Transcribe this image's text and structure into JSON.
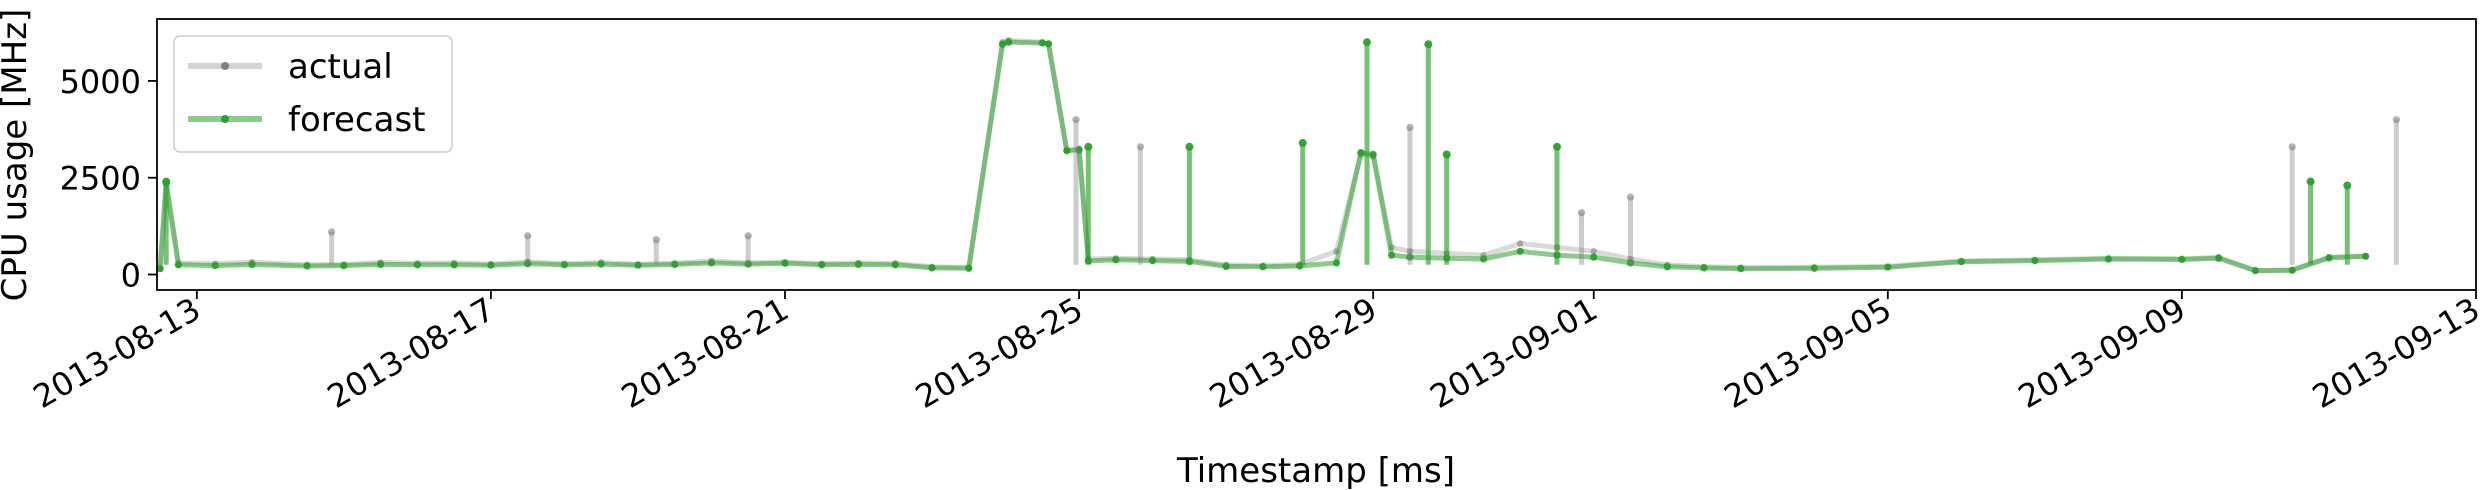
{
  "chart_data": {
    "type": "line",
    "title": "",
    "xlabel": "Timestamp [ms]",
    "ylabel": "CPU usage [MHz]",
    "xlim": [
      "2013-08-12T11:00",
      "2013-09-13T00:00"
    ],
    "ylim": [
      -400,
      6600
    ],
    "x_ticks": [
      "2013-08-13",
      "2013-08-17",
      "2013-08-21",
      "2013-08-25",
      "2013-08-29",
      "2013-09-01",
      "2013-09-05",
      "2013-09-09",
      "2013-09-13"
    ],
    "y_ticks": [
      0,
      2500,
      5000
    ],
    "legend_position": "top-left",
    "grid": false,
    "series": [
      {
        "name": "actual",
        "color": "#808080",
        "x": [
          "2013-08-12T12:00",
          "2013-08-12T14:00",
          "2013-08-12T18:00",
          "2013-08-13T06:00",
          "2013-08-13T18:00",
          "2013-08-14T12:00",
          "2013-08-15T00:00",
          "2013-08-15T12:00",
          "2013-08-16T00:00",
          "2013-08-16T12:00",
          "2013-08-17T00:00",
          "2013-08-17T12:00",
          "2013-08-18T00:00",
          "2013-08-18T12:00",
          "2013-08-19T00:00",
          "2013-08-19T12:00",
          "2013-08-20T00:00",
          "2013-08-20T12:00",
          "2013-08-21T00:00",
          "2013-08-21T12:00",
          "2013-08-22T00:00",
          "2013-08-22T12:00",
          "2013-08-23T00:00",
          "2013-08-23T12:00",
          "2013-08-23T23:00",
          "2013-08-24T01:00",
          "2013-08-24T12:00",
          "2013-08-24T14:00",
          "2013-08-24T20:00",
          "2013-08-25T00:00",
          "2013-08-25T03:00",
          "2013-08-25T12:00",
          "2013-08-26T00:00",
          "2013-08-26T12:00",
          "2013-08-27T00:00",
          "2013-08-27T12:00",
          "2013-08-28T00:00",
          "2013-08-28T12:00",
          "2013-08-28T20:00",
          "2013-08-29T00:00",
          "2013-08-29T06:00",
          "2013-08-29T12:00",
          "2013-08-30T00:00",
          "2013-08-30T12:00",
          "2013-08-31T00:00",
          "2013-08-31T12:00",
          "2013-09-01T00:00",
          "2013-09-01T12:00",
          "2013-09-02T00:00",
          "2013-09-02T12:00",
          "2013-09-03T00:00",
          "2013-09-04T00:00",
          "2013-09-05T00:00",
          "2013-09-06T00:00",
          "2013-09-07T00:00",
          "2013-09-08T00:00",
          "2013-09-09T00:00",
          "2013-09-09T12:00",
          "2013-09-10T00:00",
          "2013-09-10T12:00",
          "2013-09-11T00:00",
          "2013-09-11T12:00"
        ],
        "values": [
          150,
          2400,
          300,
          280,
          320,
          250,
          260,
          310,
          290,
          300,
          270,
          330,
          280,
          310,
          260,
          290,
          350,
          300,
          320,
          280,
          300,
          290,
          200,
          180,
          6000,
          6050,
          6000,
          5950,
          3200,
          3250,
          400,
          420,
          400,
          380,
          250,
          230,
          260,
          600,
          3100,
          3050,
          700,
          600,
          550,
          500,
          800,
          700,
          600,
          400,
          250,
          200,
          180,
          190,
          210,
          350,
          380,
          420,
          400,
          450,
          100,
          120,
          450,
          480
        ]
      },
      {
        "name": "forecast",
        "color": "#2ca02c",
        "x": [
          "2013-08-12T12:00",
          "2013-08-12T14:00",
          "2013-08-12T18:00",
          "2013-08-13T06:00",
          "2013-08-13T18:00",
          "2013-08-14T12:00",
          "2013-08-15T00:00",
          "2013-08-15T12:00",
          "2013-08-16T00:00",
          "2013-08-16T12:00",
          "2013-08-17T00:00",
          "2013-08-17T12:00",
          "2013-08-18T00:00",
          "2013-08-18T12:00",
          "2013-08-19T00:00",
          "2013-08-19T12:00",
          "2013-08-20T00:00",
          "2013-08-20T12:00",
          "2013-08-21T00:00",
          "2013-08-21T12:00",
          "2013-08-22T00:00",
          "2013-08-22T12:00",
          "2013-08-23T00:00",
          "2013-08-23T12:00",
          "2013-08-23T23:00",
          "2013-08-24T01:00",
          "2013-08-24T12:00",
          "2013-08-24T14:00",
          "2013-08-24T20:00",
          "2013-08-25T00:00",
          "2013-08-25T03:00",
          "2013-08-25T12:00",
          "2013-08-26T00:00",
          "2013-08-26T12:00",
          "2013-08-27T00:00",
          "2013-08-27T12:00",
          "2013-08-28T00:00",
          "2013-08-28T12:00",
          "2013-08-28T20:00",
          "2013-08-29T00:00",
          "2013-08-29T06:00",
          "2013-08-29T12:00",
          "2013-08-30T00:00",
          "2013-08-30T12:00",
          "2013-08-31T00:00",
          "2013-08-31T12:00",
          "2013-09-01T00:00",
          "2013-09-01T12:00",
          "2013-09-02T00:00",
          "2013-09-02T12:00",
          "2013-09-03T00:00",
          "2013-09-04T00:00",
          "2013-09-05T00:00",
          "2013-09-06T00:00",
          "2013-09-07T00:00",
          "2013-09-08T00:00",
          "2013-09-09T00:00",
          "2013-09-09T12:00",
          "2013-09-10T00:00",
          "2013-09-10T12:00",
          "2013-09-11T00:00",
          "2013-09-11T12:00"
        ],
        "values": [
          150,
          2350,
          250,
          230,
          260,
          220,
          230,
          260,
          250,
          250,
          240,
          280,
          250,
          270,
          240,
          260,
          300,
          270,
          290,
          250,
          260,
          250,
          170,
          160,
          5950,
          6000,
          5980,
          5960,
          3200,
          3220,
          350,
          380,
          360,
          340,
          210,
          200,
          220,
          300,
          3150,
          3100,
          500,
          450,
          420,
          400,
          600,
          500,
          450,
          300,
          200,
          170,
          150,
          160,
          190,
          330,
          360,
          400,
          390,
          420,
          100,
          110,
          430,
          470
        ]
      }
    ],
    "spikes": [
      {
        "x": "2013-08-12T14:00",
        "value": 2400,
        "series": "forecast"
      },
      {
        "x": "2013-08-14T20:00",
        "value": 1100,
        "series": "actual"
      },
      {
        "x": "2013-08-17T12:00",
        "value": 1000,
        "series": "actual"
      },
      {
        "x": "2013-08-19T06:00",
        "value": 900,
        "series": "actual"
      },
      {
        "x": "2013-08-20T12:00",
        "value": 1000,
        "series": "actual"
      },
      {
        "x": "2013-08-24T23:00",
        "value": 4000,
        "series": "actual"
      },
      {
        "x": "2013-08-25T03:00",
        "value": 3300,
        "series": "forecast"
      },
      {
        "x": "2013-08-25T20:00",
        "value": 3300,
        "series": "actual"
      },
      {
        "x": "2013-08-26T12:00",
        "value": 3300,
        "series": "forecast"
      },
      {
        "x": "2013-08-28T01:00",
        "value": 3400,
        "series": "forecast"
      },
      {
        "x": "2013-08-28T22:00",
        "value": 6000,
        "series": "forecast"
      },
      {
        "x": "2013-08-29T12:00",
        "value": 3800,
        "series": "actual"
      },
      {
        "x": "2013-08-29T18:00",
        "value": 5950,
        "series": "forecast"
      },
      {
        "x": "2013-08-30T00:00",
        "value": 3100,
        "series": "forecast"
      },
      {
        "x": "2013-08-31T12:00",
        "value": 3300,
        "series": "forecast"
      },
      {
        "x": "2013-08-31T20:00",
        "value": 1600,
        "series": "actual"
      },
      {
        "x": "2013-09-01T12:00",
        "value": 2000,
        "series": "actual"
      },
      {
        "x": "2013-09-10T12:00",
        "value": 3300,
        "series": "actual"
      },
      {
        "x": "2013-09-10T18:00",
        "value": 2400,
        "series": "forecast"
      },
      {
        "x": "2013-09-11T06:00",
        "value": 2300,
        "series": "forecast"
      },
      {
        "x": "2013-09-11T22:00",
        "value": 4000,
        "series": "actual"
      }
    ]
  }
}
